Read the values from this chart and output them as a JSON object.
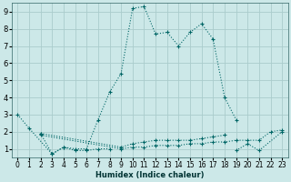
{
  "xlabel": "Humidex (Indice chaleur)",
  "bg_color": "#cce8e8",
  "grid_color": "#aacccc",
  "line_color": "#006666",
  "xlim": [
    -0.5,
    23.5
  ],
  "ylim": [
    0.5,
    9.5
  ],
  "xticks": [
    0,
    1,
    2,
    3,
    4,
    5,
    6,
    7,
    8,
    9,
    10,
    11,
    12,
    13,
    14,
    15,
    16,
    17,
    18,
    19,
    20,
    21,
    22,
    23
  ],
  "yticks": [
    1,
    2,
    3,
    4,
    5,
    6,
    7,
    8,
    9
  ],
  "series": [
    {
      "x": [
        0,
        1,
        3,
        4,
        5,
        6,
        7,
        8,
        9,
        10,
        11,
        12,
        13,
        14,
        15,
        16,
        17,
        18,
        19
      ],
      "y": [
        3.0,
        2.2,
        0.7,
        1.1,
        1.0,
        1.0,
        2.7,
        4.3,
        5.4,
        9.2,
        9.3,
        7.7,
        7.8,
        7.0,
        7.8,
        8.3,
        7.4,
        4.0,
        2.7
      ]
    },
    {
      "x": [
        2,
        3,
        4,
        5,
        6,
        7,
        8
      ],
      "y": [
        1.9,
        0.7,
        1.1,
        0.9,
        0.9,
        1.0,
        1.0
      ]
    },
    {
      "x": [
        2,
        9,
        10,
        11,
        12,
        13,
        14,
        15,
        16,
        17,
        18
      ],
      "y": [
        1.9,
        1.1,
        1.3,
        1.4,
        1.5,
        1.5,
        1.5,
        1.5,
        1.6,
        1.7,
        1.8
      ]
    },
    {
      "x": [
        2,
        9,
        10,
        11,
        12,
        13,
        14,
        15,
        16,
        17,
        18,
        19,
        20,
        21,
        22,
        23
      ],
      "y": [
        1.8,
        1.0,
        1.1,
        1.1,
        1.2,
        1.2,
        1.2,
        1.3,
        1.3,
        1.4,
        1.4,
        1.5,
        1.5,
        1.5,
        2.0,
        2.1
      ]
    },
    {
      "x": [
        19,
        20,
        21,
        23
      ],
      "y": [
        0.9,
        1.3,
        0.9,
        2.0
      ]
    }
  ]
}
